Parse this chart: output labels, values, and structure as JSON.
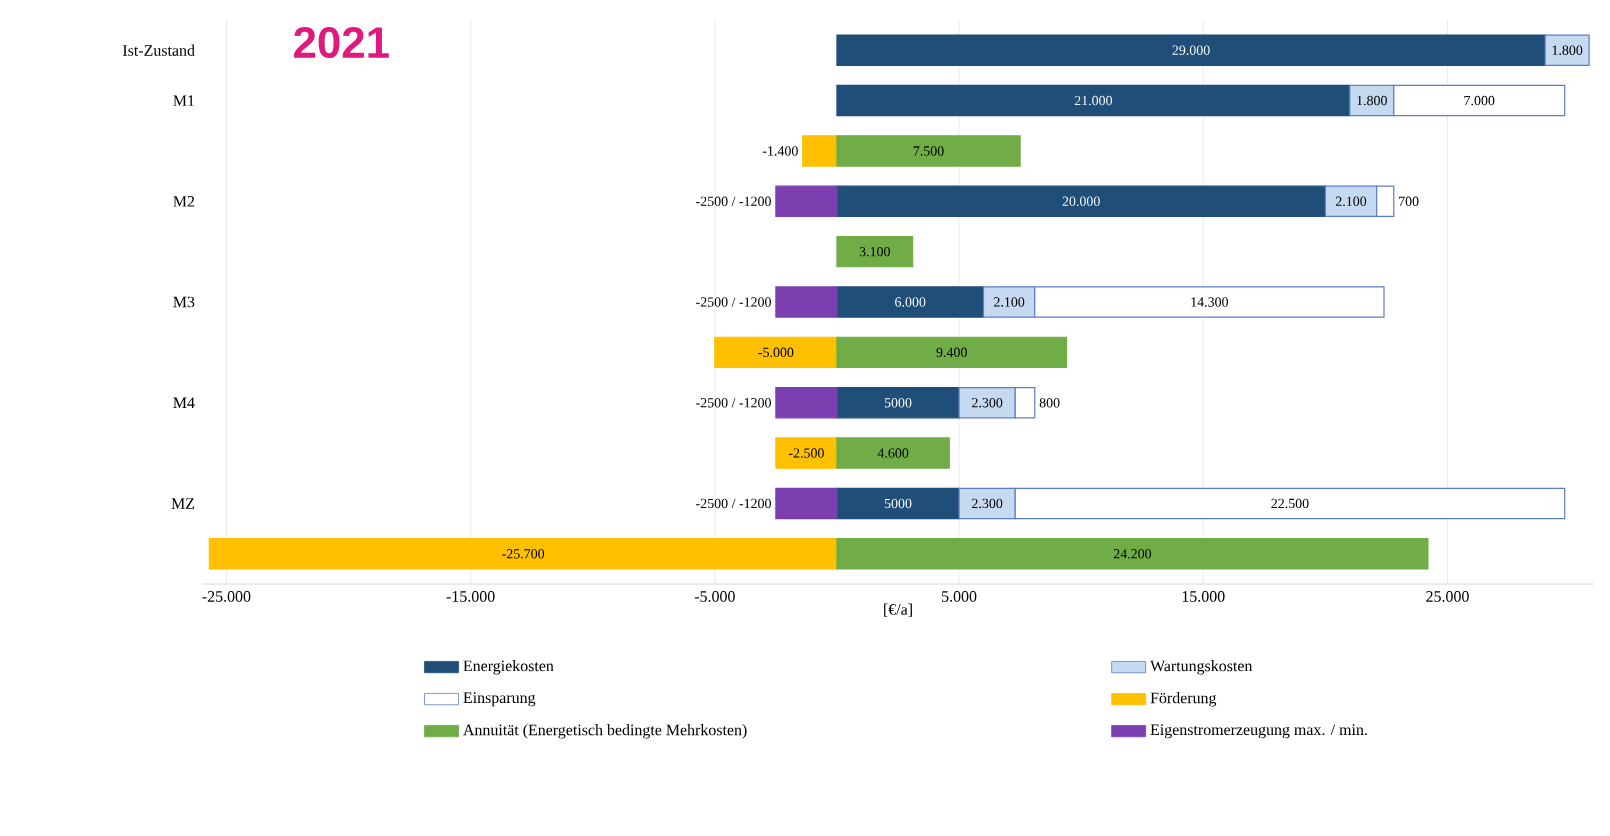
{
  "chart_data": {
    "type": "bar",
    "orientation": "horizontal",
    "stacked": true,
    "title": "2021",
    "xlabel": "[€/a]",
    "categories": [
      "Ist-Zustand",
      "M1",
      null,
      "M2",
      null,
      "M3",
      null,
      "M4",
      null,
      "MZ",
      null
    ],
    "series": [
      {
        "name": "Energiekosten",
        "color": "#1f4e79",
        "values": [
          29000,
          21000,
          null,
          20000,
          null,
          6000,
          null,
          5000,
          null,
          5000,
          null
        ],
        "value_labels": [
          "29.000",
          "21.000",
          null,
          "20.000",
          null,
          "6.000",
          null,
          "5000",
          null,
          "5000",
          null
        ]
      },
      {
        "name": "Wartungskosten",
        "color": "#c5d9f1",
        "values": [
          1800,
          1800,
          null,
          2100,
          null,
          2100,
          null,
          2300,
          null,
          2300,
          null
        ],
        "value_labels": [
          "1.800",
          "1.800",
          null,
          "2.100",
          null,
          "2.100",
          null,
          "2.300",
          null,
          "2.300",
          null
        ]
      },
      {
        "name": "Einsparung",
        "color": "#ffffff",
        "values": [
          null,
          7000,
          null,
          700,
          null,
          14300,
          null,
          800,
          null,
          22500,
          null
        ],
        "value_labels": [
          null,
          "7.000",
          null,
          "700",
          null,
          "14.300",
          null,
          "800",
          null,
          "22.500",
          null
        ]
      },
      {
        "name": "Förderung",
        "color": "#ffc000",
        "values": [
          null,
          null,
          -1400,
          null,
          null,
          null,
          -5000,
          null,
          -2500,
          null,
          -25700
        ],
        "value_labels": [
          null,
          null,
          "-1.400",
          null,
          null,
          null,
          "-5.000",
          null,
          "-2.500",
          null,
          "-25.700"
        ]
      },
      {
        "name": "Annuität (Energetisch bedingte Mehrkosten)",
        "color": "#70ad47",
        "values": [
          null,
          null,
          7500,
          null,
          3100,
          null,
          9400,
          null,
          4600,
          null,
          24200
        ],
        "value_labels": [
          null,
          null,
          "7.500",
          null,
          "3.100",
          null,
          "9.400",
          null,
          "4.600",
          null,
          "24.200"
        ]
      },
      {
        "name": "Eigenstromerzeugung max. / min.",
        "color": "#7b3fb0",
        "values": [
          null,
          null,
          null,
          -2500,
          null,
          -2500,
          null,
          -2500,
          null,
          -2500,
          null
        ],
        "value_labels": [
          null,
          null,
          null,
          "-2500 / -1200",
          null,
          "-2500 / -1200",
          null,
          "-2500 / -1200",
          null,
          "-2500 / -1200",
          null
        ]
      }
    ],
    "xlim": [
      -26000,
      31000
    ],
    "xticks": [
      {
        "value": -25000,
        "label": "-25.000"
      },
      {
        "value": -15000,
        "label": "-15.000"
      },
      {
        "value": -5000,
        "label": "-5.000"
      },
      {
        "value": 5000,
        "label": "5.000"
      },
      {
        "value": 15000,
        "label": "15.000"
      },
      {
        "value": 25000,
        "label": "25.000"
      }
    ],
    "grid": "x",
    "legend": "bottom"
  }
}
